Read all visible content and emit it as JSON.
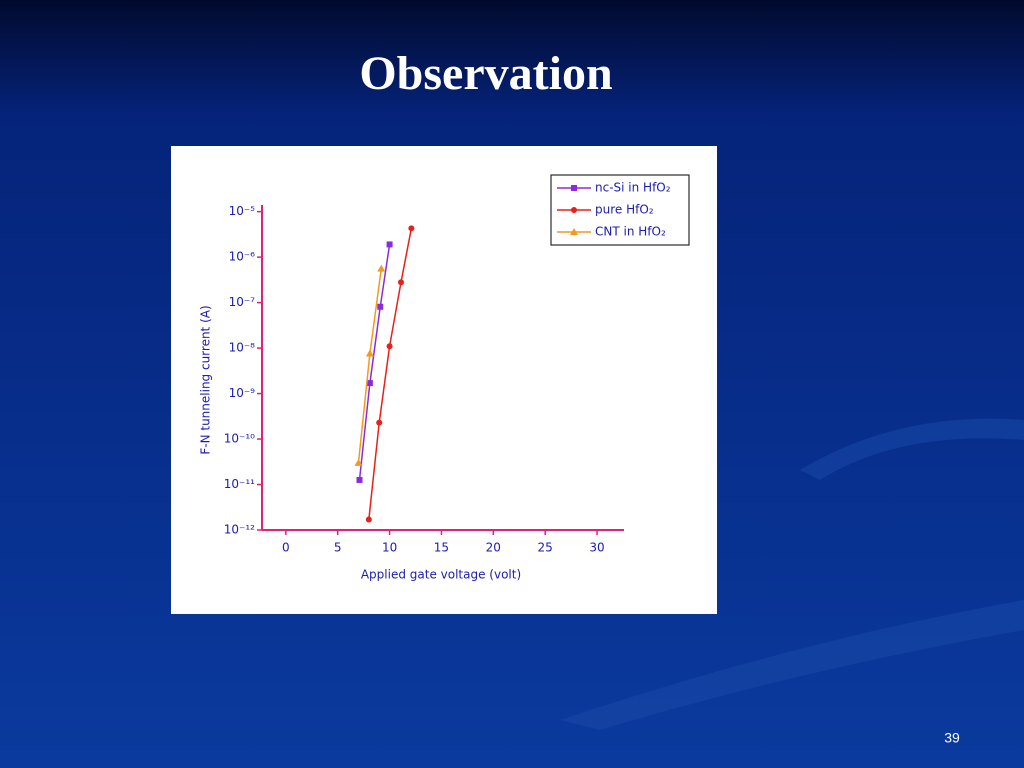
{
  "slide_title": "Observation",
  "page_number": "39",
  "chart_data": {
    "type": "line",
    "xlabel": "Applied gate voltage (volt)",
    "ylabel": "F-N tunneling current (A)",
    "xlim": [
      -2.3,
      32.6
    ],
    "xticks": [
      0,
      5,
      10,
      15,
      20,
      25,
      30
    ],
    "ylim": [
      1e-12,
      1.4e-05
    ],
    "log_y": true,
    "yticks": [
      {
        "value": 1e-12,
        "label": "10⁻¹²"
      },
      {
        "value": 1e-11,
        "label": "10⁻¹¹"
      },
      {
        "value": 1e-10,
        "label": "10⁻¹⁰"
      },
      {
        "value": 1e-09,
        "label": "10⁻⁹"
      },
      {
        "value": 1e-08,
        "label": "10⁻⁸"
      },
      {
        "value": 1e-07,
        "label": "10⁻⁷"
      },
      {
        "value": 1e-06,
        "label": "10⁻⁶"
      },
      {
        "value": 1e-05,
        "label": "10⁻⁵"
      }
    ],
    "legend": "upper right",
    "series": [
      {
        "name": "nc-Si in HfO₂",
        "color": "#8a2be2",
        "marker": "square",
        "x": [
          7.1,
          8.1,
          9.1,
          10.0
        ],
        "values": [
          1.26e-11,
          1.7e-09,
          8.1e-08,
          1.9e-06
        ]
      },
      {
        "name": "pure HfO₂",
        "color": "#e8201a",
        "marker": "circle",
        "x": [
          8.0,
          9.0,
          10.0,
          11.1,
          12.1
        ],
        "values": [
          1.7e-12,
          2.3e-10,
          1.1e-08,
          2.8e-07,
          4.3e-06
        ]
      },
      {
        "name": "CNT in HfO₂",
        "color": "#f39a1e",
        "marker": "triangle",
        "x": [
          7.0,
          8.1,
          9.2
        ],
        "values": [
          3e-11,
          7.6e-09,
          5.6e-07
        ]
      }
    ]
  }
}
